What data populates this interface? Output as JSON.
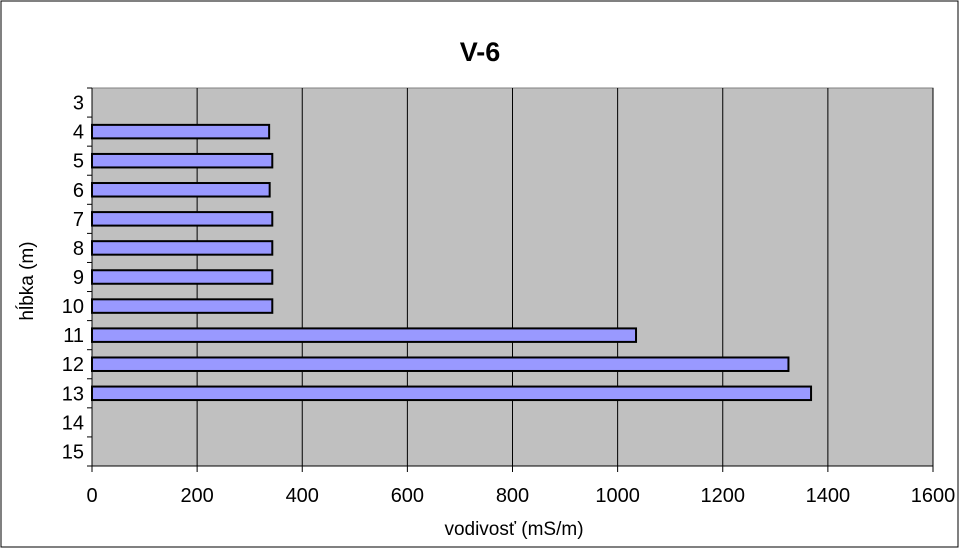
{
  "chart_data": {
    "type": "bar",
    "orientation": "horizontal",
    "title": "V-6",
    "xlabel": "vodivosť (mS/m)",
    "ylabel": "hĺbka (m)",
    "xlim": [
      0,
      1600
    ],
    "x_ticks": [
      0,
      200,
      400,
      600,
      800,
      1000,
      1200,
      1400,
      1600
    ],
    "categories": [
      "3",
      "4",
      "5",
      "6",
      "7",
      "8",
      "9",
      "10",
      "11",
      "12",
      "13",
      "14",
      "15"
    ],
    "values": [
      null,
      337,
      343,
      338,
      343,
      343,
      343,
      343,
      1035,
      1325,
      1368,
      null,
      null
    ],
    "grid": "vertical",
    "legend": "none",
    "colors": {
      "bar_fill": "#9999ff",
      "bar_stroke": "#000000",
      "plot_background": "#c0c0c0",
      "grid": "#000000"
    }
  }
}
